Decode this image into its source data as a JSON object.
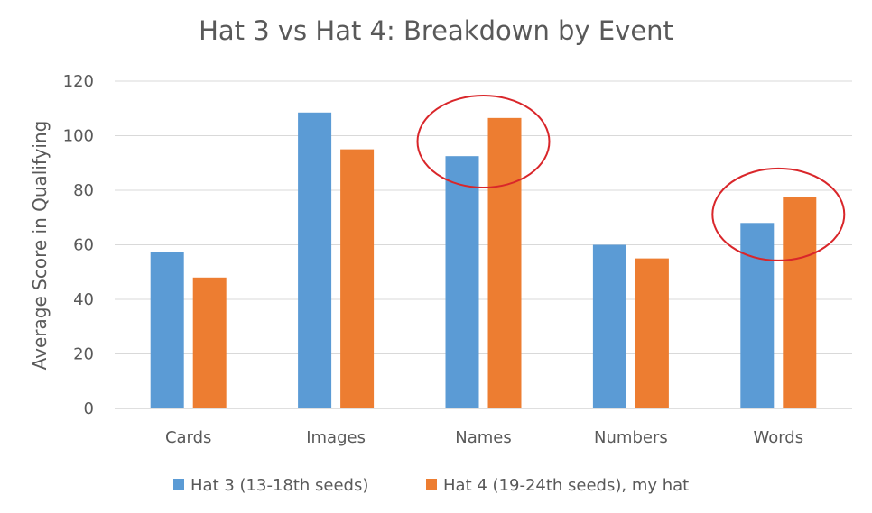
{
  "chart_data": {
    "type": "bar",
    "title": "Hat 3 vs Hat 4: Breakdown by Event",
    "xlabel": "",
    "ylabel": "Average Score in Qualifying",
    "ylim": [
      0,
      120
    ],
    "yticks": [
      0,
      20,
      40,
      60,
      80,
      100,
      120
    ],
    "categories": [
      "Cards",
      "Images",
      "Names",
      "Numbers",
      "Words"
    ],
    "series": [
      {
        "name": "Hat 3 (13-18th seeds)",
        "color": "#5B9BD5",
        "values": [
          57.5,
          108.5,
          92.5,
          60,
          68
        ]
      },
      {
        "name": "Hat 4 (19-24th seeds), my hat",
        "color": "#ED7D31",
        "values": [
          48,
          95,
          106.5,
          55,
          77.5
        ]
      }
    ],
    "grid": true,
    "legend_position": "bottom",
    "annotations": [
      {
        "type": "ellipse",
        "category": "Names",
        "color": "#D9262A"
      },
      {
        "type": "ellipse",
        "category": "Words",
        "color": "#D9262A"
      }
    ]
  }
}
